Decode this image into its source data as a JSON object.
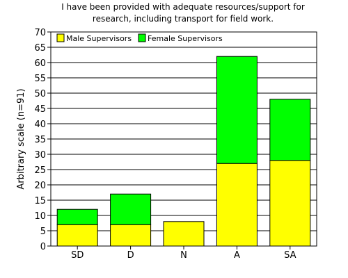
{
  "chart_data": {
    "type": "bar",
    "stacked": true,
    "title_lines": [
      "I have been provided with adequate resources/support for",
      "research, including transport for field work."
    ],
    "xlabel": "",
    "ylabel": "Arbitrary scale (n=91)",
    "categories": [
      "SD",
      "D",
      "N",
      "A",
      "SA"
    ],
    "series": [
      {
        "name": "Male Supervisors",
        "color": "#ffff00",
        "values": [
          7,
          7,
          8,
          27,
          28
        ]
      },
      {
        "name": "Female Supervisors",
        "color": "#00ff00",
        "values": [
          5,
          10,
          0,
          35,
          20
        ]
      }
    ],
    "ylim": [
      0,
      70
    ],
    "yticks": [
      0,
      5,
      10,
      15,
      20,
      25,
      30,
      35,
      40,
      45,
      50,
      55,
      60,
      65,
      70
    ],
    "grid": true,
    "legend_position": "top-left"
  }
}
